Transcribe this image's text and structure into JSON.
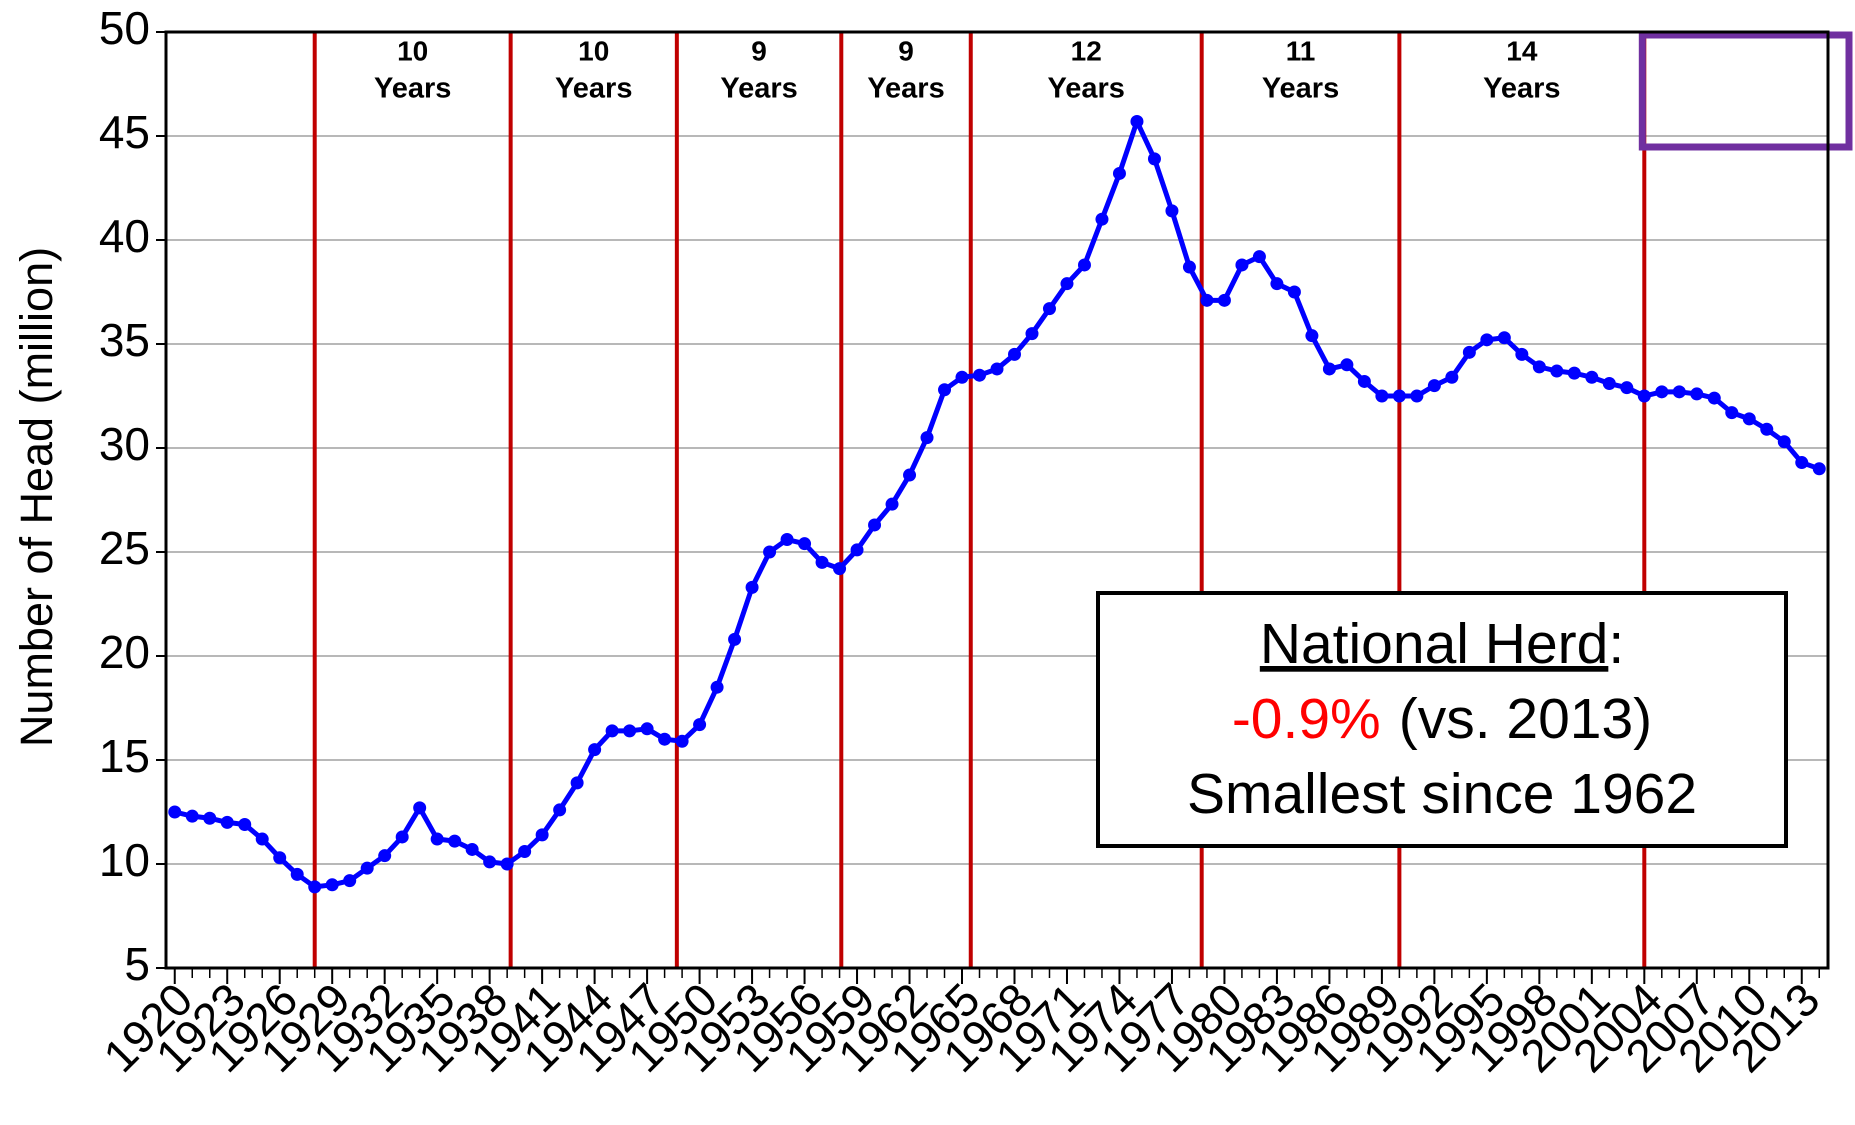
{
  "chart_data": {
    "type": "line",
    "y_label": "Number of Head (million)",
    "x": [
      1920,
      1921,
      1922,
      1923,
      1924,
      1925,
      1926,
      1927,
      1928,
      1929,
      1930,
      1931,
      1932,
      1933,
      1934,
      1935,
      1936,
      1937,
      1938,
      1939,
      1940,
      1941,
      1942,
      1943,
      1944,
      1945,
      1946,
      1947,
      1948,
      1949,
      1950,
      1951,
      1952,
      1953,
      1954,
      1955,
      1956,
      1957,
      1958,
      1959,
      1960,
      1961,
      1962,
      1963,
      1964,
      1965,
      1966,
      1967,
      1968,
      1969,
      1970,
      1971,
      1972,
      1973,
      1974,
      1975,
      1976,
      1977,
      1978,
      1979,
      1980,
      1981,
      1982,
      1983,
      1984,
      1985,
      1986,
      1987,
      1988,
      1989,
      1990,
      1991,
      1992,
      1993,
      1994,
      1995,
      1996,
      1997,
      1998,
      1999,
      2000,
      2001,
      2002,
      2003,
      2004,
      2005,
      2006,
      2007,
      2008,
      2009,
      2010,
      2011,
      2012,
      2013,
      2014
    ],
    "series": [
      {
        "color": "#0000ff",
        "values": [
          12.5,
          12.3,
          12.2,
          12.0,
          11.9,
          11.2,
          10.3,
          9.5,
          8.9,
          9.0,
          9.2,
          9.8,
          10.4,
          11.3,
          12.7,
          11.2,
          11.1,
          10.7,
          10.1,
          10.0,
          10.6,
          11.4,
          12.6,
          13.9,
          15.5,
          16.4,
          16.4,
          16.5,
          16.0,
          15.9,
          16.7,
          18.5,
          20.8,
          23.3,
          25.0,
          25.6,
          25.4,
          24.5,
          24.2,
          25.1,
          26.3,
          27.3,
          28.7,
          30.5,
          32.8,
          33.4,
          33.5,
          33.8,
          34.5,
          35.5,
          36.7,
          37.9,
          38.8,
          41.0,
          43.2,
          45.7,
          43.9,
          41.4,
          38.7,
          37.1,
          37.1,
          38.8,
          39.2,
          37.9,
          37.5,
          35.4,
          33.8,
          34.0,
          33.2,
          32.5,
          32.5,
          32.5,
          33.0,
          33.4,
          34.6,
          35.2,
          35.3,
          34.5,
          33.9,
          33.7,
          33.6,
          33.4,
          33.1,
          32.9,
          32.5,
          32.7,
          32.7,
          32.6,
          32.4,
          31.7,
          31.4,
          30.9,
          30.3,
          29.3,
          29.0
        ]
      }
    ],
    "xlim": [
      1919.5,
      2014.5
    ],
    "xticks": [
      1920,
      1923,
      1926,
      1929,
      1932,
      1935,
      1938,
      1941,
      1944,
      1947,
      1950,
      1953,
      1956,
      1959,
      1962,
      1965,
      1968,
      1971,
      1974,
      1977,
      1980,
      1983,
      1986,
      1989,
      1992,
      1995,
      1998,
      2001,
      2004,
      2007,
      2010,
      2013
    ],
    "ylim": [
      5,
      50
    ],
    "yticks": [
      5,
      10,
      15,
      20,
      25,
      30,
      35,
      40,
      45,
      50
    ],
    "grid": true,
    "cycle_lines": [
      1928,
      1939.2,
      1948.7,
      1958.1,
      1965.5,
      1978.7,
      1990,
      2004
    ],
    "cycle_line_color": "#c00000",
    "cycle_labels": [
      {
        "number": 10,
        "text": "Years"
      },
      {
        "number": 10,
        "text": "Years"
      },
      {
        "number": 9,
        "text": "Years"
      },
      {
        "number": 9,
        "text": "Years"
      },
      {
        "number": 12,
        "text": "Years"
      },
      {
        "number": 11,
        "text": "Years"
      },
      {
        "number": 14,
        "text": "Years"
      }
    ],
    "highlight_color": "#7030a0",
    "annotation": {
      "title": "National Herd",
      "title_suffix": ":",
      "change": "-0.9%",
      "change_color": "#ff0000",
      "change_note": "(vs. 2013)",
      "line3": "Smallest since 1962"
    }
  }
}
